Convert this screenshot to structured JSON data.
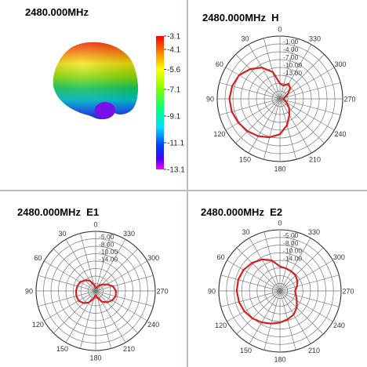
{
  "chart_data": [
    {
      "type": "heatmap",
      "title": "2480.000MHz",
      "colorbar": {
        "ticks": [
          "-3.1",
          "-4.1",
          "-5.6",
          "-7.1",
          "-9.1",
          "-11.1",
          "-13.1"
        ],
        "range": [
          -13.1,
          -3.1
        ]
      }
    },
    {
      "type": "polar",
      "title": "2480.000MHz  H",
      "angle_labels": [
        "0",
        "30",
        "60",
        "90",
        "120",
        "150",
        "180",
        "210",
        "240",
        "270",
        "300",
        "330"
      ],
      "radial_labels": [
        "-1.00",
        "-4.00",
        "-7.00",
        "-10.00",
        "-13.00"
      ],
      "series": [
        {
          "angles": [
            0,
            15,
            30,
            45,
            60,
            75,
            90,
            105,
            120,
            135,
            150,
            165,
            180,
            195,
            210,
            225,
            240,
            255,
            270,
            285,
            300,
            315,
            330,
            345
          ],
          "values": [
            -13.9,
            -10.5,
            -8.2,
            -6.6,
            -5.2,
            -4.6,
            -4.3,
            -4.5,
            -5.0,
            -5.6,
            -6.3,
            -7.2,
            -8.4,
            -10.6,
            -12.9,
            -14.5,
            -15.9,
            -16.7,
            -17.1,
            -16.7,
            -15.6,
            -14.1,
            -13.3,
            -14.3
          ]
        }
      ]
    },
    {
      "type": "polar",
      "title": "2480.000MHz  E1",
      "angle_labels": [
        "0",
        "30",
        "60",
        "90",
        "120",
        "150",
        "180",
        "210",
        "240",
        "270",
        "300",
        "330"
      ],
      "radial_labels": [
        "-5.00",
        "-8.00",
        "-10.00",
        "-14.00"
      ],
      "series": [
        {
          "angles": [
            0,
            15,
            30,
            45,
            60,
            75,
            90,
            105,
            120,
            135,
            150,
            165,
            180,
            195,
            210,
            225,
            240,
            255,
            270,
            285,
            300,
            315,
            330,
            345
          ],
          "values": [
            -17.2,
            -16.1,
            -14.6,
            -13.7,
            -12.9,
            -12.6,
            -12.4,
            -12.3,
            -12.4,
            -13.1,
            -14.2,
            -15.7,
            -16.8,
            -16.0,
            -14.5,
            -13.4,
            -12.6,
            -12.1,
            -12.2,
            -12.9,
            -14.3,
            -15.4,
            -16.3,
            -17.0
          ]
        }
      ]
    },
    {
      "type": "polar",
      "title": "2480.000MHz  E2",
      "angle_labels": [
        "0",
        "30",
        "60",
        "90",
        "120",
        "150",
        "180",
        "210",
        "240",
        "270",
        "300",
        "330"
      ],
      "radial_labels": [
        "-5.00",
        "-8.00",
        "-10.00",
        "-14.00"
      ],
      "series": [
        {
          "angles": [
            0,
            15,
            30,
            45,
            60,
            75,
            90,
            105,
            120,
            135,
            150,
            165,
            180,
            195,
            210,
            225,
            240,
            255,
            270,
            285,
            300,
            315,
            330,
            345
          ],
          "values": [
            -11.2,
            -9.2,
            -7.9,
            -7.0,
            -6.3,
            -6.0,
            -6.0,
            -6.2,
            -6.6,
            -7.2,
            -7.9,
            -8.6,
            -9.2,
            -9.8,
            -10.4,
            -11.4,
            -12.6,
            -13.4,
            -13.8,
            -13.1,
            -12.4,
            -11.9,
            -11.7,
            -11.5
          ]
        }
      ]
    }
  ]
}
